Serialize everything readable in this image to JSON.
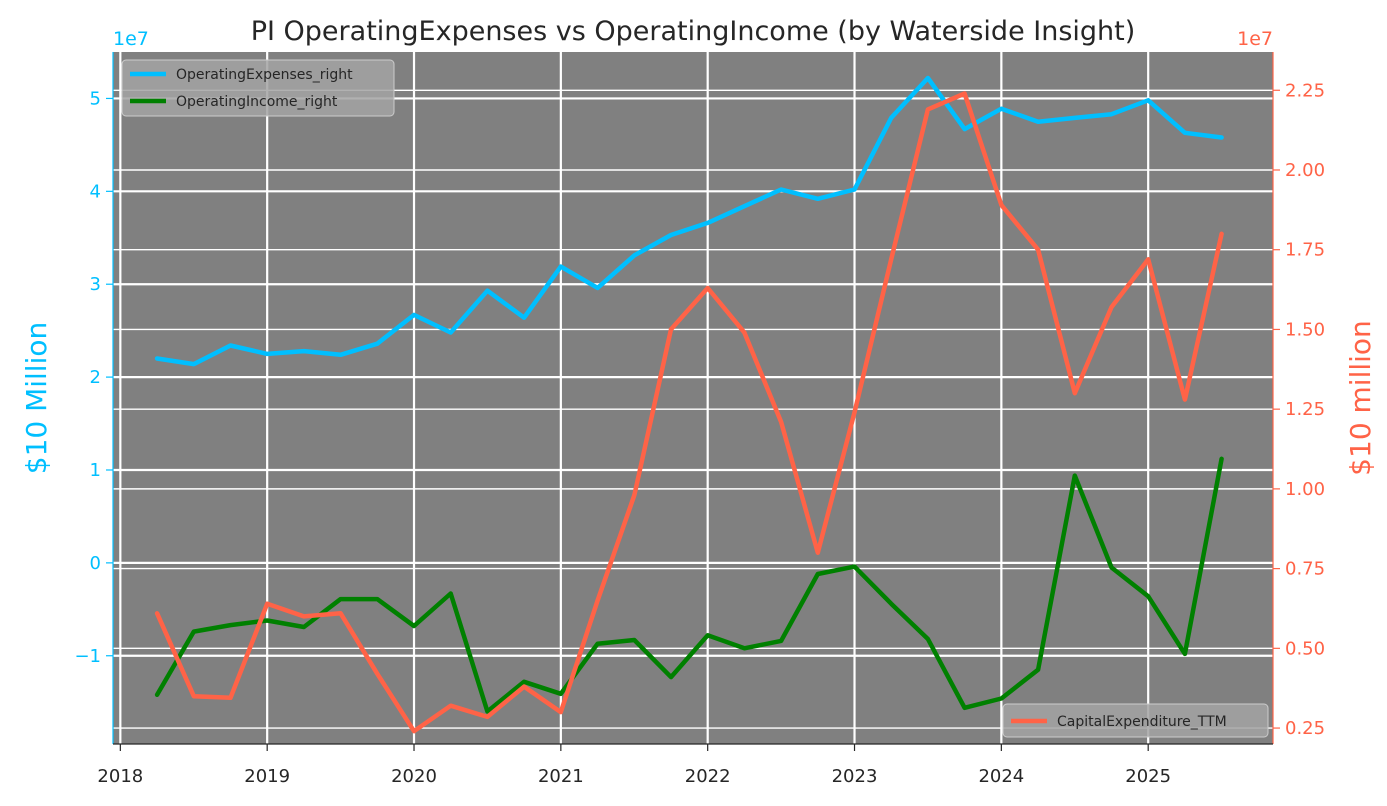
{
  "chart_data": {
    "type": "line",
    "title": "PI OperatingExpenses vs OperatingIncome (by Waterside Insight)",
    "x_ticks": [
      "2018",
      "2019",
      "2020",
      "2021",
      "2022",
      "2023",
      "2024",
      "2025"
    ],
    "xlim": [
      2017.95,
      2025.85
    ],
    "left_axis": {
      "label": "$10 Million",
      "offset_text": "1e7",
      "ylim": [
        -1.95,
        5.5
      ],
      "ticks": [
        -1,
        0,
        1,
        2,
        3,
        4,
        5
      ],
      "tick_labels": [
        "−1",
        "0",
        "1",
        "2",
        "3",
        "4",
        "5"
      ],
      "color": "#00BFFF"
    },
    "right_axis": {
      "label": "$10 million",
      "offset_text": "1e7",
      "ylim": [
        0.2,
        2.37
      ],
      "ticks": [
        0.25,
        0.5,
        0.75,
        1.0,
        1.25,
        1.5,
        1.75,
        2.0,
        2.25
      ],
      "tick_labels": [
        "0.25",
        "0.50",
        "0.75",
        "1.00",
        "1.25",
        "1.50",
        "1.75",
        "2.00",
        "2.25"
      ],
      "color": "#FF6347"
    },
    "x_dates": [
      2018.25,
      2018.5,
      2018.75,
      2019.0,
      2019.25,
      2019.5,
      2019.75,
      2020.0,
      2020.25,
      2020.5,
      2020.75,
      2021.0,
      2021.25,
      2021.5,
      2021.75,
      2022.0,
      2022.25,
      2022.5,
      2022.75,
      2023.0,
      2023.25,
      2023.5,
      2023.75,
      2024.0,
      2024.25,
      2024.5,
      2024.75,
      2025.0,
      2025.25,
      2025.5
    ],
    "series": [
      {
        "name": "OperatingExpenses_right",
        "axis": "left",
        "color": "#00BFFF",
        "values": [
          2.2,
          2.14,
          2.34,
          2.25,
          2.28,
          2.24,
          2.36,
          2.67,
          2.48,
          2.93,
          2.64,
          3.19,
          2.96,
          3.31,
          3.53,
          3.66,
          3.84,
          4.02,
          3.92,
          4.02,
          4.79,
          5.22,
          4.67,
          4.89,
          4.75,
          4.79,
          4.83,
          4.98,
          4.63,
          4.58
        ]
      },
      {
        "name": "OperatingIncome_right",
        "axis": "left",
        "color": "#008000",
        "values": [
          -1.42,
          -0.74,
          -0.67,
          -0.62,
          -0.69,
          -0.39,
          -0.39,
          -0.68,
          -0.33,
          -1.6,
          -1.28,
          -1.41,
          -0.87,
          -0.83,
          -1.23,
          -0.78,
          -0.92,
          -0.84,
          -0.12,
          -0.04,
          -0.44,
          -0.82,
          -1.56,
          -1.46,
          -1.15,
          0.94,
          -0.05,
          -0.36,
          -0.98,
          1.12
        ]
      },
      {
        "name": "CapitalExpenditure_TTM",
        "axis": "right",
        "color": "#FF6347",
        "values": [
          0.61,
          0.35,
          0.345,
          0.64,
          0.6,
          0.61,
          0.42,
          0.24,
          0.32,
          0.285,
          0.38,
          0.3,
          0.65,
          0.98,
          1.5,
          1.63,
          1.49,
          1.21,
          0.8,
          1.24,
          1.72,
          2.19,
          2.24,
          1.89,
          1.75,
          1.3,
          1.57,
          1.72,
          1.28,
          1.8
        ]
      }
    ],
    "legend_left": {
      "position": "upper-left",
      "entries": [
        "OperatingExpenses_right",
        "OperatingIncome_right"
      ]
    },
    "legend_right": {
      "position": "lower-right",
      "entries": [
        "CapitalExpenditure_TTM"
      ]
    },
    "grid": true
  }
}
